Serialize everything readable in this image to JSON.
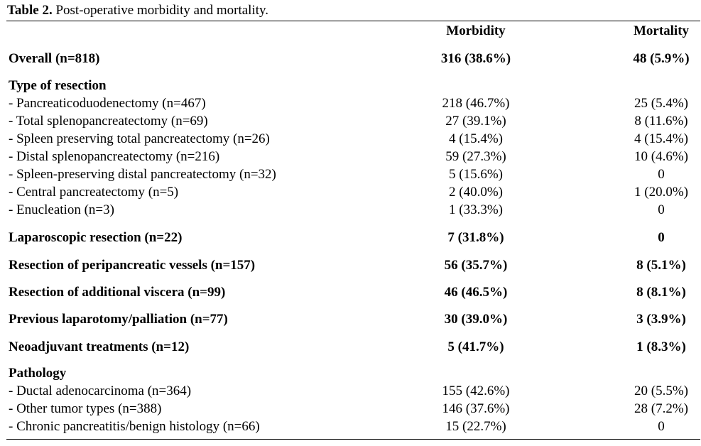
{
  "table": {
    "caption_number": "Table 2.",
    "caption_text": " Post-operative morbidity and mortality.",
    "headers": {
      "morbidity": "Morbidity",
      "mortality": "Mortality"
    },
    "rows": [
      {
        "label": "Overall (n=818)",
        "morbidity": "316 (38.6%)",
        "mortality": "48 (5.9%)"
      },
      {
        "label": "Type of resection",
        "morbidity": "",
        "mortality": ""
      },
      {
        "label": "- Pancreaticoduodenectomy (n=467)",
        "morbidity": "218 (46.7%)",
        "mortality": "25 (5.4%)"
      },
      {
        "label": "- Total splenopancreatectomy (n=69)",
        "morbidity": "27 (39.1%)",
        "mortality": "8 (11.6%)"
      },
      {
        "label": "- Spleen preserving total pancreatectomy (n=26)",
        "morbidity": "4 (15.4%)",
        "mortality": "4 (15.4%)"
      },
      {
        "label": "- Distal splenopancreatectomy (n=216)",
        "morbidity": "59 (27.3%)",
        "mortality": "10 (4.6%)"
      },
      {
        "label": "- Spleen-preserving distal pancreatectomy (n=32)",
        "morbidity": "5 (15.6%)",
        "mortality": "0"
      },
      {
        "label": "- Central pancreatectomy (n=5)",
        "morbidity": "2 (40.0%)",
        "mortality": "1 (20.0%)"
      },
      {
        "label": "- Enucleation (n=3)",
        "morbidity": "1 (33.3%)",
        "mortality": "0"
      },
      {
        "label": "Laparoscopic resection (n=22)",
        "morbidity": "7 (31.8%)",
        "mortality": "0"
      },
      {
        "label": "Resection of peripancreatic vessels (n=157)",
        "morbidity": "56 (35.7%)",
        "mortality": "8 (5.1%)"
      },
      {
        "label": "Resection of additional viscera (n=99)",
        "morbidity": "46 (46.5%)",
        "mortality": "8 (8.1%)"
      },
      {
        "label": "Previous laparotomy/palliation (n=77)",
        "morbidity": "30 (39.0%)",
        "mortality": "3 (3.9%)"
      },
      {
        "label": "Neoadjuvant treatments (n=12)",
        "morbidity": "5 (41.7%)",
        "mortality": "1 (8.3%)"
      },
      {
        "label": "Pathology",
        "morbidity": "",
        "mortality": ""
      },
      {
        "label": "- Ductal adenocarcinoma (n=364)",
        "morbidity": "155 (42.6%)",
        "mortality": "20 (5.5%)"
      },
      {
        "label": "- Other tumor types (n=388)",
        "morbidity": "146 (37.6%)",
        "mortality": "28 (7.2%)"
      },
      {
        "label": "- Chronic pancreatitis/benign histology (n=66)",
        "morbidity": "15 (22.7%)",
        "mortality": "0"
      }
    ]
  }
}
